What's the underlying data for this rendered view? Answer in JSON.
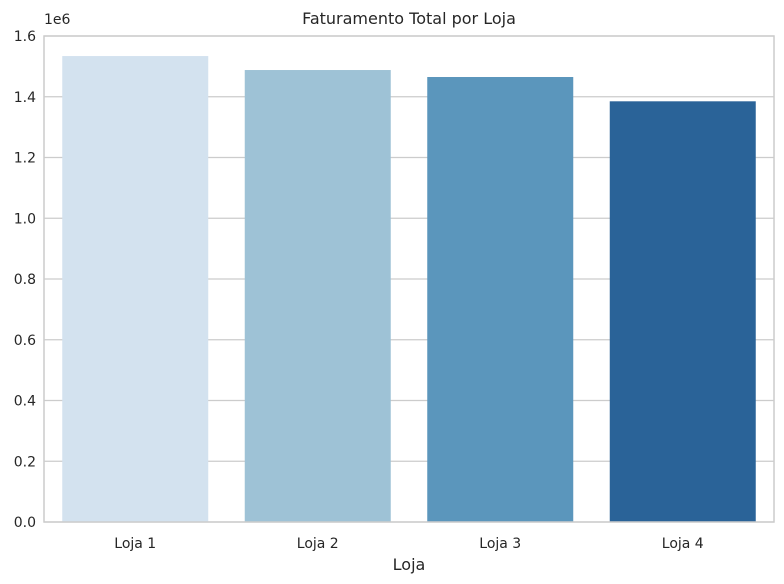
{
  "chart_data": {
    "type": "bar",
    "title": "Faturamento Total por Loja",
    "xlabel": "Loja",
    "ylabel": "",
    "y_offset_label": "1e6",
    "categories": [
      "Loja 1",
      "Loja 2",
      "Loja 3",
      "Loja 4"
    ],
    "values": [
      1534000,
      1488000,
      1465000,
      1385000
    ],
    "ylim": [
      0,
      1600000
    ],
    "yticks": [
      0,
      200000,
      400000,
      600000,
      800000,
      1000000,
      1200000,
      1400000,
      1600000
    ],
    "ytick_labels": [
      "0.0",
      "0.2",
      "0.4",
      "0.6",
      "0.8",
      "1.0",
      "1.2",
      "1.4",
      "1.6"
    ],
    "colors": [
      "#d3e2ef",
      "#9ec2d6",
      "#5b96bc",
      "#2a6398"
    ],
    "grid": "horizontal",
    "legend": "none"
  }
}
